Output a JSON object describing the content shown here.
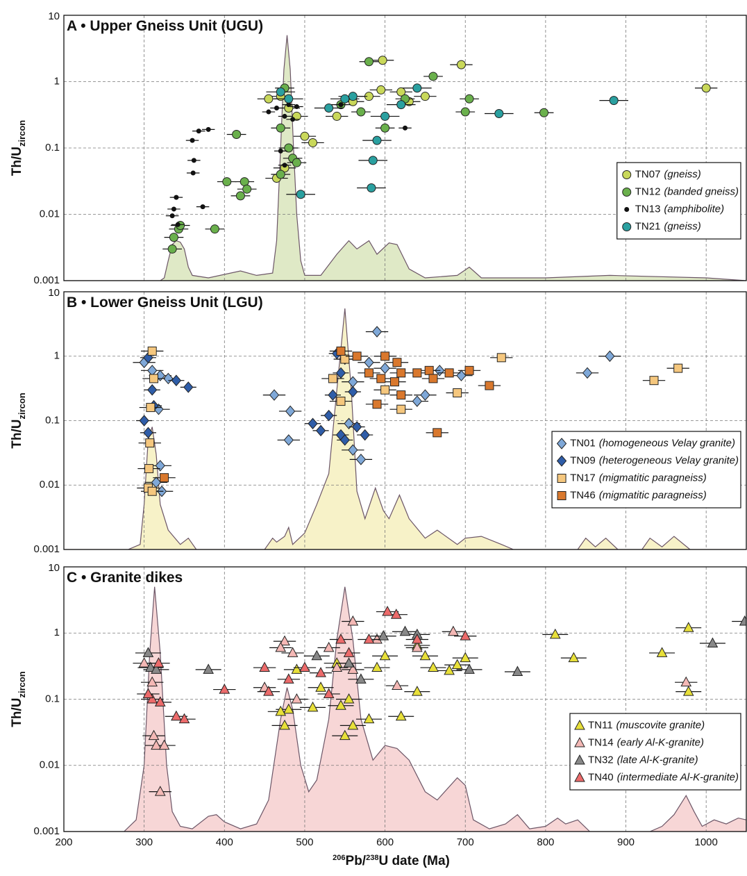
{
  "chart_data": [
    {
      "type": "scatter",
      "title": "A • Upper Gneiss Unit (UGU)",
      "y_label": "Th/U",
      "y_label_subscript": "zircon",
      "xlim": [
        200,
        1050
      ],
      "xticks": [
        300,
        400,
        500,
        600,
        700,
        800,
        900,
        1000
      ],
      "ylim": [
        0.001,
        10
      ],
      "yticks": [
        10,
        1,
        0.1,
        0.01,
        0.001
      ],
      "log_y": true,
      "grid": true,
      "legend": "lower right",
      "kde": {
        "color": "#dfe9c6",
        "x": [
          200,
          320,
          325,
          330,
          335,
          340,
          345,
          350,
          355,
          360,
          380,
          420,
          440,
          460,
          465,
          470,
          474,
          478,
          482,
          486,
          490,
          495,
          500,
          520,
          540,
          555,
          565,
          580,
          590,
          605,
          615,
          630,
          650,
          690,
          705,
          720,
          800,
          880,
          1000,
          1050
        ],
        "y": [
          0.001,
          0.001,
          0.0011,
          0.002,
          0.0035,
          0.004,
          0.0038,
          0.003,
          0.0016,
          0.0012,
          0.0011,
          0.0014,
          0.0012,
          0.0013,
          0.004,
          0.1,
          1.5,
          5,
          1.5,
          0.1,
          0.01,
          0.002,
          0.0012,
          0.0012,
          0.0025,
          0.004,
          0.003,
          0.004,
          0.0025,
          0.0037,
          0.0035,
          0.0015,
          0.0011,
          0.0012,
          0.0016,
          0.0011,
          0.0011,
          0.0012,
          0.0011,
          0.001
        ]
      },
      "series": [
        {
          "name": "TN07",
          "description": "(gneiss)",
          "color": "#c9d85a",
          "marker": "circle",
          "xerr": 14,
          "x": [
            597,
            695,
            1000,
            595,
            560,
            540,
            620,
            470,
            480,
            465,
            475,
            500,
            510,
            580,
            630,
            650,
            455,
            490
          ],
          "y": [
            2.1,
            1.8,
            0.8,
            0.75,
            0.5,
            0.3,
            0.7,
            0.6,
            0.4,
            0.035,
            0.05,
            0.15,
            0.12,
            0.6,
            0.5,
            0.6,
            0.55,
            0.3
          ]
        },
        {
          "name": "TN12",
          "description": "(banded gneiss)",
          "color": "#6ab04c",
          "marker": "circle",
          "xerr": 12,
          "x": [
            580,
            660,
            705,
            700,
            798,
            415,
            403,
            388,
            335,
            337,
            343,
            345,
            420,
            425,
            428,
            475,
            470,
            480,
            485,
            490,
            470,
            545,
            570,
            600,
            625
          ],
          "y": [
            2.0,
            1.2,
            0.55,
            0.35,
            0.34,
            0.16,
            0.031,
            0.006,
            0.003,
            0.0045,
            0.006,
            0.0068,
            0.019,
            0.031,
            0.024,
            0.8,
            0.2,
            0.1,
            0.07,
            0.06,
            0.04,
            0.45,
            0.35,
            0.2,
            0.55
          ]
        },
        {
          "name": "TN13",
          "description": "(amphibolite)",
          "color": "#111111",
          "marker": "dot",
          "xerr": 8,
          "x": [
            360,
            368,
            380,
            362,
            361,
            373,
            340,
            337,
            335,
            342,
            455,
            465,
            475,
            480,
            490,
            485,
            545,
            625,
            470,
            475
          ],
          "y": [
            0.13,
            0.18,
            0.19,
            0.065,
            0.042,
            0.013,
            0.018,
            0.012,
            0.0095,
            0.007,
            0.35,
            0.4,
            0.3,
            0.45,
            0.42,
            0.27,
            0.45,
            0.2,
            0.09,
            0.055
          ]
        },
        {
          "name": "TN21",
          "description": "(gneiss)",
          "color": "#2aa0a0",
          "marker": "circle",
          "xerr": 18,
          "x": [
            885,
            742,
            590,
            585,
            583,
            495,
            480,
            470,
            560,
            600,
            620,
            640,
            530,
            550
          ],
          "y": [
            0.52,
            0.33,
            0.13,
            0.065,
            0.025,
            0.02,
            0.55,
            0.7,
            0.6,
            0.3,
            0.45,
            0.8,
            0.4,
            0.55
          ]
        }
      ]
    },
    {
      "type": "scatter",
      "title": "B • Lower Gneiss Unit (LGU)",
      "y_label": "Th/U",
      "y_label_subscript": "zircon",
      "xlim": [
        200,
        1050
      ],
      "xticks": [
        300,
        400,
        500,
        600,
        700,
        800,
        900,
        1000
      ],
      "ylim": [
        0.001,
        10
      ],
      "yticks": [
        10,
        1,
        0.1,
        0.01,
        0.001
      ],
      "log_y": true,
      "grid": true,
      "legend": "lower right",
      "kde": {
        "color": "#f7f2c8",
        "x": [
          200,
          280,
          295,
          300,
          305,
          310,
          315,
          320,
          330,
          345,
          355,
          365,
          450,
          460,
          465,
          475,
          480,
          485,
          500,
          515,
          530,
          540,
          550,
          558,
          565,
          575,
          588,
          598,
          605,
          618,
          630,
          650,
          665,
          690,
          700,
          720,
          745,
          760,
          840,
          850,
          862,
          875,
          890,
          920,
          930,
          945,
          960,
          980,
          1050
        ],
        "y": [
          0.001,
          0.001,
          0.0012,
          0.005,
          0.05,
          0.08,
          0.03,
          0.005,
          0.002,
          0.0012,
          0.0015,
          0.001,
          0.001,
          0.0015,
          0.0013,
          0.0016,
          0.0022,
          0.0012,
          0.0018,
          0.005,
          0.015,
          0.3,
          5.5,
          0.3,
          0.008,
          0.003,
          0.009,
          0.004,
          0.003,
          0.007,
          0.003,
          0.0015,
          0.002,
          0.0012,
          0.0015,
          0.0016,
          0.0012,
          0.001,
          0.001,
          0.0015,
          0.0011,
          0.0015,
          0.001,
          0.001,
          0.0015,
          0.0011,
          0.0016,
          0.001,
          0.001
        ]
      },
      "series": [
        {
          "name": "TN01",
          "description": "(homogeneous Velay granite)",
          "color": "#7fa8d8",
          "marker": "diamond",
          "xerr": 14,
          "x": [
            590,
            880,
            852,
            668,
            695,
            650,
            640,
            462,
            482,
            480,
            555,
            560,
            570,
            300,
            310,
            320,
            330,
            318,
            320,
            322,
            315,
            560,
            580,
            600
          ],
          "y": [
            2.4,
            1.0,
            0.55,
            0.6,
            0.5,
            0.25,
            0.2,
            0.25,
            0.14,
            0.05,
            0.09,
            0.035,
            0.025,
            0.8,
            0.6,
            0.5,
            0.45,
            0.15,
            0.02,
            0.008,
            0.011,
            0.4,
            0.8,
            0.65
          ]
        },
        {
          "name": "TN09",
          "description": "(heterogeneous Velay granite)",
          "color": "#2f5da8",
          "marker": "diamond",
          "xerr": 10,
          "x": [
            540,
            550,
            305,
            310,
            300,
            305,
            312,
            355,
            340,
            510,
            520,
            530,
            545,
            550,
            565,
            575,
            535,
            560,
            545
          ],
          "y": [
            1.1,
            0.9,
            0.95,
            0.3,
            0.1,
            0.065,
            0.17,
            0.33,
            0.42,
            0.09,
            0.07,
            0.12,
            0.06,
            0.05,
            0.08,
            0.06,
            0.25,
            0.28,
            0.55
          ]
        },
        {
          "name": "TN17",
          "description": "(migmatitic paragneiss)",
          "color": "#f5c77e",
          "marker": "square",
          "xerr": 14,
          "x": [
            310,
            312,
            308,
            307,
            306,
            305,
            310,
            745,
            965,
            935,
            690,
            620,
            550,
            535,
            545,
            600
          ],
          "y": [
            1.2,
            0.45,
            0.16,
            0.045,
            0.018,
            0.009,
            0.008,
            0.95,
            0.65,
            0.42,
            0.27,
            0.15,
            0.9,
            0.45,
            0.2,
            0.3
          ]
        },
        {
          "name": "TN46",
          "description": "(migmatitic paragneiss)",
          "color": "#d9782d",
          "marker": "square",
          "xerr": 14,
          "x": [
            545,
            565,
            580,
            595,
            612,
            620,
            640,
            655,
            660,
            680,
            705,
            730,
            665,
            590,
            620,
            325,
            600,
            615
          ],
          "y": [
            1.2,
            1.0,
            0.55,
            0.45,
            0.4,
            0.55,
            0.55,
            0.6,
            0.45,
            0.55,
            0.6,
            0.35,
            0.065,
            0.18,
            0.25,
            0.013,
            1.0,
            0.8
          ]
        }
      ]
    },
    {
      "type": "scatter",
      "title": "C • Granite dikes",
      "y_label": "Th/U",
      "y_label_subscript": "zircon",
      "xlabel_parts": [
        {
          "text": "206",
          "sup": true
        },
        {
          "text": "Pb/"
        },
        {
          "text": "238",
          "sup": true
        },
        {
          "text": "U date (Ma)"
        }
      ],
      "xlim": [
        200,
        1050
      ],
      "xticks": [
        200,
        300,
        400,
        500,
        600,
        700,
        800,
        900,
        1000
      ],
      "ylim": [
        0.001,
        10
      ],
      "yticks": [
        10,
        1,
        0.1,
        0.01,
        0.001
      ],
      "log_y": true,
      "grid": true,
      "legend": "lower right",
      "kde": {
        "color": "#f7d6d6",
        "x": [
          200,
          275,
          290,
          300,
          307,
          313,
          320,
          328,
          335,
          345,
          360,
          380,
          390,
          400,
          420,
          440,
          455,
          470,
          478,
          485,
          495,
          505,
          515,
          530,
          540,
          550,
          560,
          570,
          585,
          600,
          615,
          630,
          650,
          665,
          690,
          700,
          710,
          730,
          750,
          765,
          780,
          800,
          815,
          825,
          840,
          855,
          930,
          945,
          960,
          975,
          985,
          995,
          1010,
          1025,
          1040,
          1050
        ],
        "y": [
          0.001,
          0.001,
          0.0015,
          0.01,
          0.5,
          5,
          0.5,
          0.01,
          0.002,
          0.0012,
          0.0011,
          0.0017,
          0.0018,
          0.0014,
          0.0011,
          0.0013,
          0.003,
          0.05,
          0.15,
          0.07,
          0.01,
          0.004,
          0.006,
          0.05,
          0.8,
          5,
          0.8,
          0.05,
          0.012,
          0.02,
          0.018,
          0.012,
          0.004,
          0.003,
          0.0065,
          0.005,
          0.0015,
          0.0011,
          0.0013,
          0.0018,
          0.0011,
          0.0012,
          0.0016,
          0.0013,
          0.0015,
          0.001,
          0.001,
          0.0012,
          0.0018,
          0.0035,
          0.002,
          0.0012,
          0.0015,
          0.0013,
          0.0016,
          0.0015
        ]
      },
      "series": [
        {
          "name": "TN11",
          "description": "(muscovite granite)",
          "color": "#e8e03a",
          "marker": "triangle",
          "xerr": 16,
          "x": [
            978,
            812,
            835,
            945,
            978,
            700,
            690,
            680,
            660,
            640,
            650,
            600,
            590,
            540,
            520,
            555,
            545,
            490,
            480,
            475,
            510,
            550,
            560,
            580,
            620,
            640,
            470
          ],
          "y": [
            1.2,
            0.95,
            0.42,
            0.5,
            0.13,
            0.42,
            0.33,
            0.27,
            0.3,
            0.65,
            0.45,
            0.45,
            0.3,
            0.35,
            0.15,
            0.1,
            0.08,
            0.28,
            0.07,
            0.04,
            0.075,
            0.028,
            0.04,
            0.05,
            0.055,
            0.13,
            0.065
          ]
        },
        {
          "name": "TN14",
          "description": "(early Al-K-granite)",
          "color": "#f4b8b5",
          "marker": "triangle",
          "xerr": 14,
          "x": [
            475,
            470,
            485,
            530,
            560,
            685,
            590,
            615,
            640,
            300,
            310,
            312,
            315,
            325,
            320,
            975,
            450,
            490,
            560,
            540
          ],
          "y": [
            0.75,
            0.6,
            0.5,
            0.6,
            1.5,
            1.05,
            0.8,
            0.16,
            0.6,
            0.35,
            0.18,
            0.028,
            0.02,
            0.02,
            0.004,
            0.18,
            0.15,
            0.1,
            0.28,
            0.3
          ]
        },
        {
          "name": "TN32",
          "description": "(late Al-K-granite)",
          "color": "#888888",
          "marker": "triangle",
          "xerr": 16,
          "x": [
            1048,
            1008,
            765,
            705,
            380,
            305,
            308,
            315,
            598,
            625,
            640,
            555,
            515,
            570
          ],
          "y": [
            1.5,
            0.7,
            0.26,
            0.28,
            0.28,
            0.5,
            0.3,
            0.28,
            0.9,
            1.05,
            0.95,
            0.35,
            0.45,
            0.2
          ]
        },
        {
          "name": "TN40",
          "description": "(intermediate Al-K-granite)",
          "color": "#ec6b6b",
          "marker": "triangle",
          "xerr": 14,
          "x": [
            603,
            614,
            700,
            640,
            580,
            555,
            545,
            500,
            450,
            480,
            340,
            350,
            400,
            310,
            320,
            305,
            318,
            530,
            455,
            520
          ],
          "y": [
            2.1,
            1.9,
            0.9,
            0.8,
            0.8,
            0.5,
            0.8,
            0.3,
            0.3,
            0.2,
            0.055,
            0.05,
            0.14,
            0.1,
            0.09,
            0.12,
            0.35,
            0.12,
            0.13,
            0.25
          ]
        }
      ]
    }
  ]
}
